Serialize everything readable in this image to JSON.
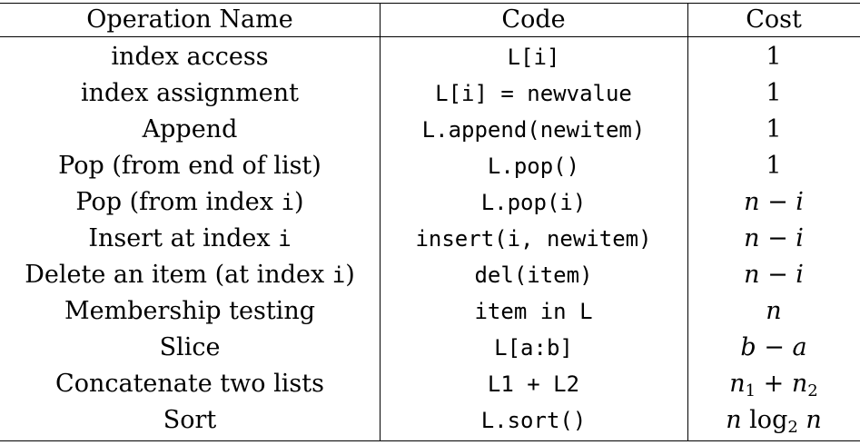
{
  "header": {
    "name": "Operation Name",
    "code": "Code",
    "cost": "Cost"
  },
  "rows": [
    {
      "name": "index access",
      "code": "L[i]",
      "cost": "1"
    },
    {
      "name": "index assignment",
      "code": "L[i] = newvalue",
      "cost": "1"
    },
    {
      "name": "Append",
      "code": "L.append(newitem)",
      "cost": "1"
    },
    {
      "name": "Pop (from end of list)",
      "code": "L.pop()",
      "cost": "1"
    },
    {
      "name_prefix": "Pop (from index ",
      "name_var": "i",
      "name_suffix": ")",
      "code": "L.pop(i)",
      "cost": "n − i"
    },
    {
      "name_prefix": "Insert at index ",
      "name_var": "i",
      "name_suffix": "",
      "code": "insert(i, newitem)",
      "cost": "n − i"
    },
    {
      "name_prefix": "Delete an item (at index ",
      "name_var": "i",
      "name_suffix": ")",
      "code": "del(item)",
      "cost": "n − i"
    },
    {
      "name": "Membership testing",
      "code": "item in L",
      "cost": "n"
    },
    {
      "name": "Slice",
      "code": "L[a:b]",
      "cost": "b − a"
    },
    {
      "name": "Concatenate two lists",
      "code": "L1 + L2",
      "cost_base1": "n",
      "cost_sub1": "1",
      "cost_mid": " + ",
      "cost_base2": "n",
      "cost_sub2": "2"
    },
    {
      "name": "Sort",
      "code": "L.sort()",
      "cost_pre": "n ",
      "cost_log": "log",
      "cost_sub": "2",
      "cost_post": " n"
    }
  ]
}
